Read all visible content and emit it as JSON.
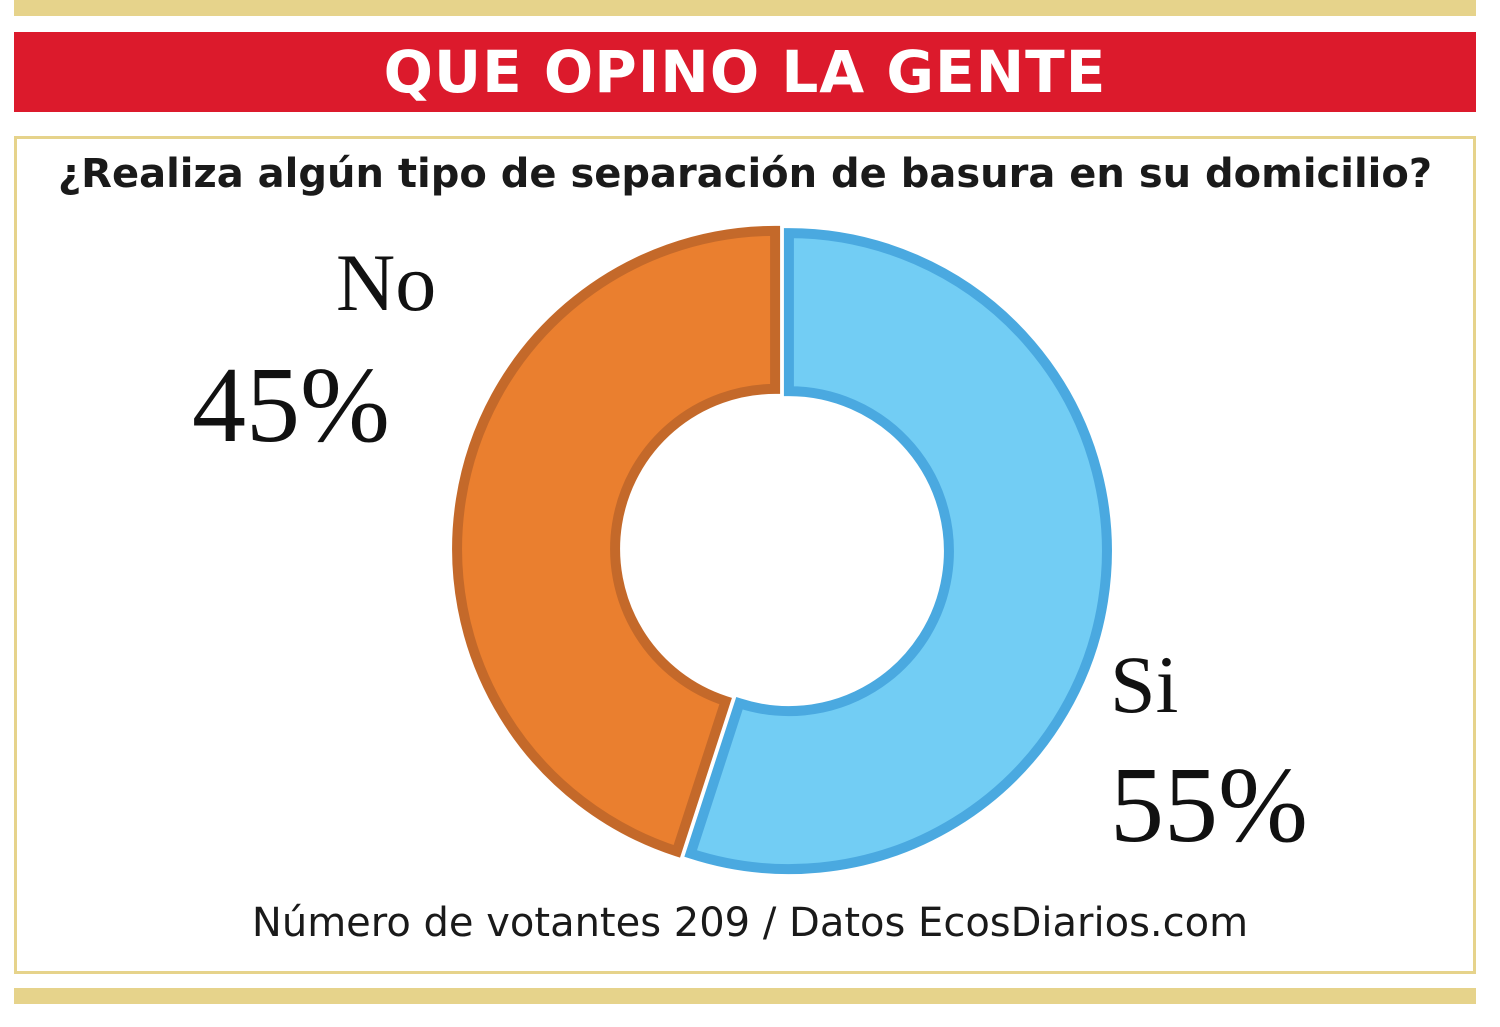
{
  "header": {
    "title": "QUE OPINO LA GENTE"
  },
  "question": "¿Realiza algún tipo de separación de basura en su domicilio?",
  "footer": {
    "note": "Número de votantes 209 / Datos EcosDiarios.com"
  },
  "colors": {
    "header_red": "#dc1a2c",
    "gold": "#e6d38b",
    "no_fill": "#ea7f2f",
    "no_stroke": "#c4692a",
    "si_fill": "#72cdf4",
    "si_stroke": "#4aa9e0"
  },
  "chart_data": {
    "type": "pie",
    "style": "donut",
    "title": "¿Realiza algún tipo de separación de basura en su domicilio?",
    "categories": [
      "Si",
      "No"
    ],
    "values": [
      55,
      45
    ],
    "unit": "%",
    "slice_labels": {
      "no": {
        "name": "No",
        "percent": "45%"
      },
      "si": {
        "name": "Si",
        "percent": "55%"
      }
    },
    "legend": "none",
    "voters": 209
  }
}
